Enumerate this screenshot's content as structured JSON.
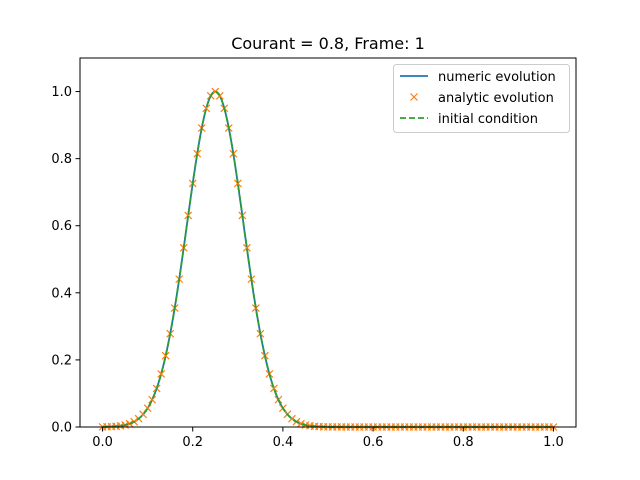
{
  "chart_data": {
    "type": "line",
    "title": "Courant = 0.8, Frame: 1",
    "xlabel": "",
    "ylabel": "",
    "xlim": [
      -0.05,
      1.05
    ],
    "ylim": [
      0.0,
      1.1
    ],
    "x_ticks": [
      0.0,
      0.2,
      0.4,
      0.6,
      0.8,
      1.0
    ],
    "x_tick_labels": [
      "0.0",
      "0.2",
      "0.4",
      "0.6",
      "0.8",
      "1.0"
    ],
    "y_ticks": [
      0.0,
      0.2,
      0.4,
      0.6,
      0.8,
      1.0
    ],
    "y_tick_labels": [
      "0.0",
      "0.2",
      "0.4",
      "0.6",
      "0.8",
      "1.0"
    ],
    "grid": false,
    "legend_position": "top-right",
    "curve_model": {
      "form": "gaussian",
      "center": 0.25,
      "sigma": 0.0625,
      "amplitude": 1.0,
      "x_range": [
        0.0,
        1.0
      ]
    },
    "series": [
      {
        "name": "numeric evolution",
        "style": "line",
        "color": "#1f77b4"
      },
      {
        "name": "analytic evolution",
        "style": "x-markers",
        "color": "#ff7f0e",
        "samples": 101
      },
      {
        "name": "initial condition",
        "style": "dashed",
        "color": "#2ca02c"
      }
    ]
  }
}
